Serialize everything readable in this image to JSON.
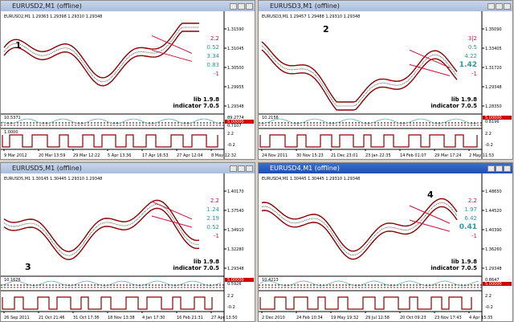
{
  "windows": [
    {
      "title": "EURUSD2,M1 (offline)",
      "header": "EURUSD2,M1 1.29363 1.29398 1.29310 1.29348",
      "number": "1",
      "prices": [
        "1.31590",
        "1.31045",
        "1.30500",
        "1.29955",
        "1.29348"
      ],
      "levels": [
        "2.2",
        "0.52",
        "3.34",
        "0.83",
        "-1"
      ],
      "lib": "lib 1.9.8",
      "indicator": "indicator 7.0.5",
      "panel1": [
        "10.5371",
        "89.2774",
        "5.00000",
        "0.7107"
      ],
      "panel2": [
        "1.0000",
        "2.2",
        "-0.2"
      ],
      "dates": [
        "9 Mar 2012",
        "20 Mar 13:59",
        "29 Mar 12:22",
        "5 Apr 13:36",
        "17 Apr 16:53",
        "27 Apr 12:04",
        "8 May 12:32"
      ]
    },
    {
      "title": "EURUSD3,M1 (offline)",
      "header": "EURUSD3,M1 1.29457 1.29488 1.29310 1.29348",
      "number": "2",
      "prices": [
        "1.35090",
        "1.33405",
        "1.31720",
        "1.29348",
        "1.28350"
      ],
      "levels": [
        "3|2",
        "0.5",
        "4.22",
        "1.42",
        "-1"
      ],
      "lib": "lib 1.9.8",
      "indicator": "indicator 7.0.5",
      "panel1": [
        "10.2156",
        "5.00000",
        "0.8196"
      ],
      "panel2": [
        "2.2",
        "-0.2"
      ],
      "dates": [
        "24 Nov 2011",
        "30 Nov 15:23",
        "21 Dec 23:01",
        "23 Jan 22:35",
        "14 Feb 01:07",
        "29 Mar 17:24",
        "2 May 11:53"
      ]
    },
    {
      "title": "EURUSD5,M1 (offline)",
      "header": "EURUSD5,M1 1.30145 1.30445 1.29310 1.29348",
      "number": "3",
      "prices": [
        "1.40170",
        "1.37540",
        "1.34910",
        "1.32280",
        "1.29348"
      ],
      "levels": [
        "2.2",
        "1.24",
        "2.19",
        "0.52",
        "-1"
      ],
      "lib": "lib 1.9.8",
      "indicator": "indicator 7.0.5",
      "panel1": [
        "10.1626",
        "5.00000",
        "0.5926"
      ],
      "panel2": [
        "2.2",
        "-0.2"
      ],
      "dates": [
        "26 Sep 2011",
        "21 Oct 21:46",
        "31 Oct 17:36",
        "18 Nov 13:38",
        "4 Jan 17:30",
        "16 Feb 21:31",
        "27 Apr 13:50"
      ]
    },
    {
      "title": "EURUSD4,M1 (offline)",
      "header": "EURUSD4,M1 1.30445 1.30445 1.29310 1.29348",
      "number": "4",
      "prices": [
        "1.48650",
        "1.44520",
        "1.40390",
        "1.36260",
        "1.29348"
      ],
      "levels": [
        "2.2",
        "1.97",
        "6.42",
        "0.41",
        "-1"
      ],
      "lib": "lib 1.9.8",
      "indicator": "indicator 7.0.5",
      "panel1": [
        "10.4213",
        "0.8647",
        "5.00000"
      ],
      "panel2": [
        "2.2",
        "-0.2"
      ],
      "dates": [
        "2 Dec 2010",
        "24 Feb 10:34",
        "19 May 19:32",
        "29 Jul 12:58",
        "20 Oct 09:23",
        "23 Nov 17:43",
        "4 Apr 15:35"
      ]
    }
  ]
}
